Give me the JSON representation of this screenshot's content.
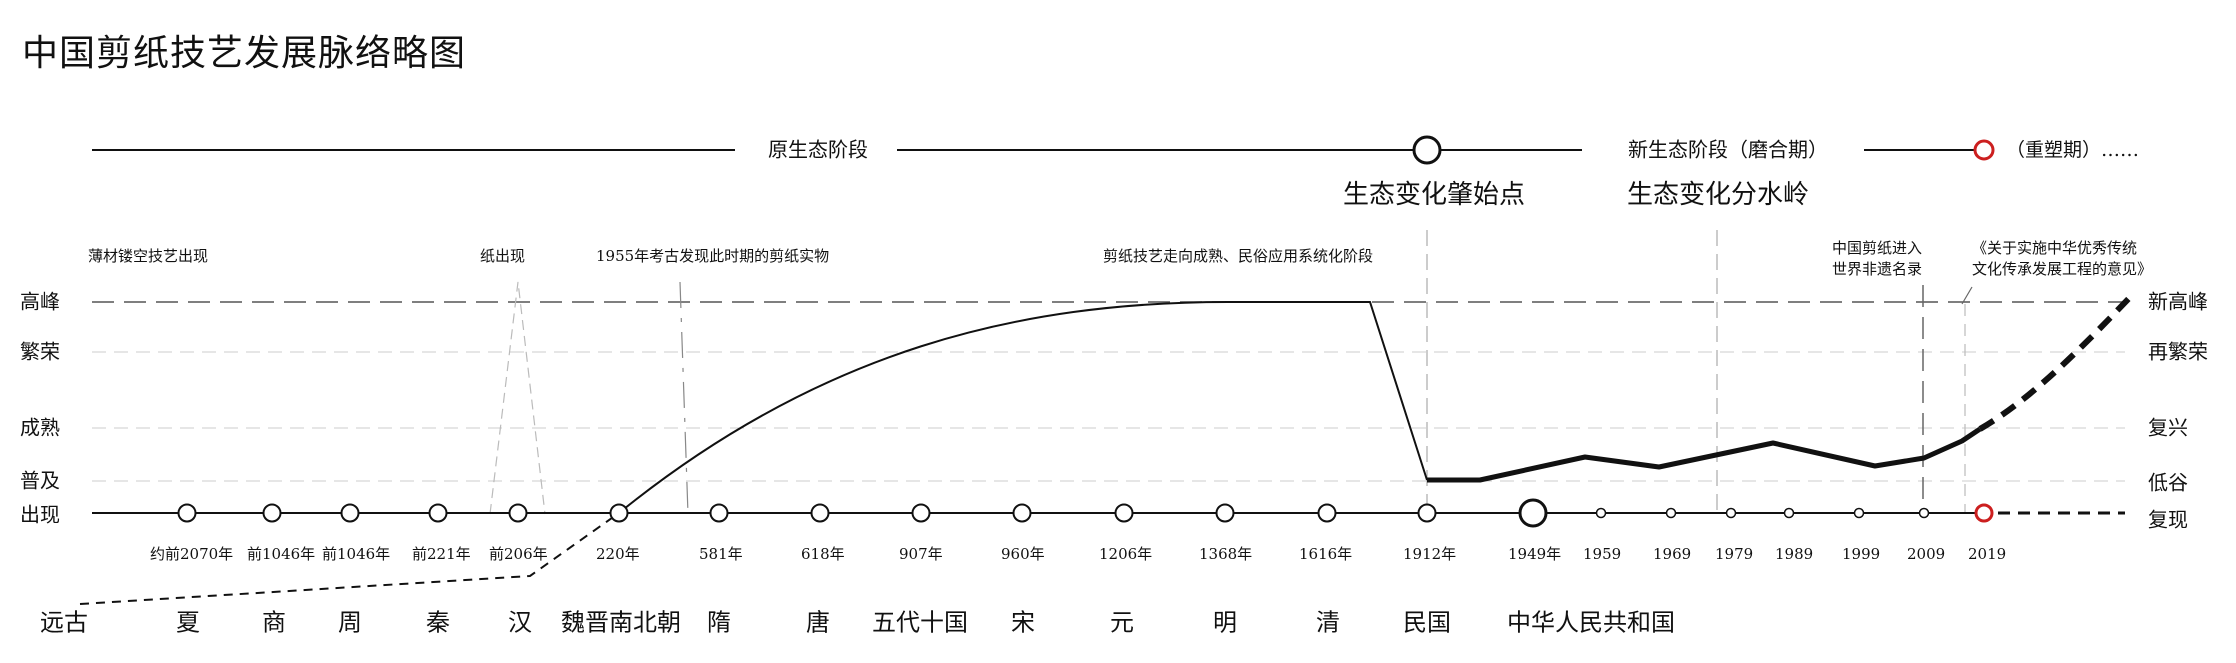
{
  "title": "中国剪纸技艺发展脉络略图",
  "phases": {
    "original": "原生态阶段",
    "new": "新生态阶段（磨合期）",
    "reshape": "（重塑期）……"
  },
  "turning_points": {
    "start": "生态变化肇始点",
    "watershed": "生态变化分水岭"
  },
  "levels_left": [
    "高峰",
    "繁荣",
    "成熟",
    "普及",
    "出现"
  ],
  "levels_right": [
    "新高峰",
    "再繁荣",
    "复兴",
    "低谷",
    "复现"
  ],
  "annotations": {
    "a1": "薄材镂空技艺出现",
    "a2": "纸出现",
    "a3": "1955年考古发现此时期的剪纸实物",
    "a4": "剪纸技艺走向成熟、民俗应用系统化阶段",
    "a5_line1": "中国剪纸进入",
    "a5_line2": "世界非遗名录",
    "a6_line1": "《关于实施中华优秀传统",
    "a6_line2": "文化传承发展工程的意见》"
  },
  "years": [
    "约前2070年",
    "前1046年",
    "前1046年",
    "前221年",
    "前206年",
    "220年",
    "581年",
    "618年",
    "907年",
    "960年",
    "1206年",
    "1368年",
    "1616年",
    "1912年",
    "1949年",
    "1959",
    "1969",
    "1979",
    "1989",
    "1999",
    "2009",
    "2019"
  ],
  "dynasties": [
    "远古",
    "夏",
    "商",
    "周",
    "秦",
    "汉",
    "魏晋南北朝",
    "隋",
    "唐",
    "五代十国",
    "宋",
    "元",
    "明",
    "清",
    "民国",
    "中华人民共和国"
  ],
  "colors": {
    "ink": "#111111",
    "accent_red": "#cc1f1f",
    "grid": "#777777",
    "guide": "#aaaaaa"
  }
}
